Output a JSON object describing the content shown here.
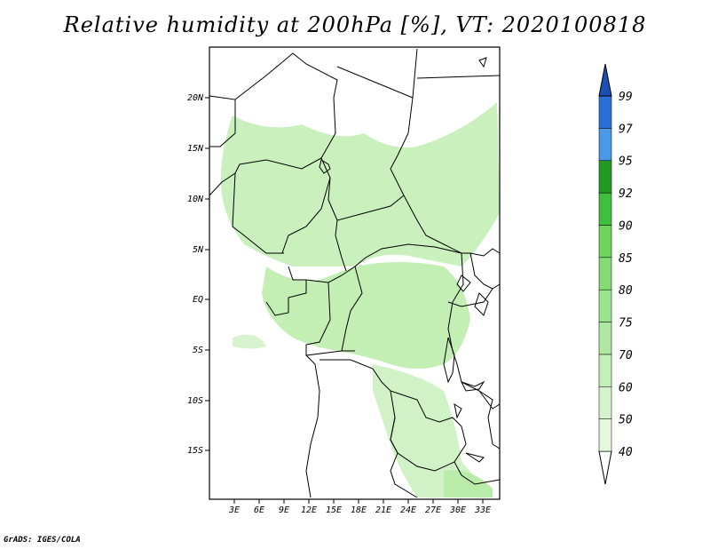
{
  "title": "Relative humidity at 200hPa [%], VT: 2020100818",
  "credit": "GrADS: IGES/COLA",
  "map": {
    "region": "Central Africa",
    "lat_ticks": [
      "20N",
      "15N",
      "10N",
      "5N",
      "EQ",
      "5S",
      "10S",
      "15S"
    ],
    "lon_ticks": [
      "3E",
      "6E",
      "9E",
      "12E",
      "15E",
      "18E",
      "21E",
      "24E",
      "27E",
      "30E",
      "33E"
    ]
  },
  "colorbar": {
    "levels": [
      "40",
      "50",
      "60",
      "70",
      "75",
      "80",
      "85",
      "90",
      "92",
      "95",
      "97",
      "99"
    ],
    "colors": [
      "#eefbea",
      "#e4f8de",
      "#d4f3cc",
      "#c3efb8",
      "#aee8a1",
      "#9be58c",
      "#86dc74",
      "#6fd45e",
      "#3fbf3f",
      "#229922",
      "#4a98e8",
      "#2a6fd6",
      "#1a4fb5"
    ]
  }
}
